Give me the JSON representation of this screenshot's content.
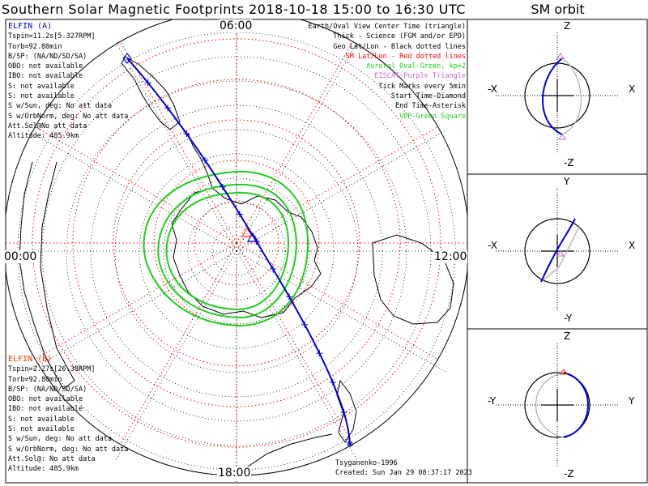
{
  "title": "Southern Solar Magnetic Footprints 2018-10-18 15:00 to 16:30 UTC",
  "orbit_title": "SM orbit",
  "clock_labels": {
    "top": "06:00",
    "bottom": "18:00",
    "left": "00:00",
    "right": "12:00"
  },
  "elfin_a": {
    "name": "ELFIN (A)",
    "color": "#0000cc",
    "lines": [
      "Tspin=11.2s[5.327RPM]",
      "Torb=92.80min",
      "B/SP: (NA/ND/SD/SA)",
      "OBO: not available",
      "IBO: not available",
      "S: not available",
      "S: not available",
      "S w/Sun, deg: No att data",
      "S w/OrbNorm, deg: No att data",
      "Att.Sol@No att data",
      "Altitude: 485.9km"
    ]
  },
  "elfin_b": {
    "name": "ELFIN (B)",
    "color": "#ff3300",
    "lines": [
      "Tspin=2.27s[26.38RPM]",
      "Torb=92.80min",
      "B/SP: (NA/ND/SD/SA)",
      "OBO: not available",
      "IBO: not available",
      "S: not available",
      "S: not available",
      "S w/Sun, deg: No att data",
      "S w/OrbNorm, deg: No att data",
      "Att.Sol@: No att data",
      "Altitude: 485.9km"
    ]
  },
  "legend": [
    {
      "text": "Earth/Oval View Center Time (triangle)",
      "color": "#000000"
    },
    {
      "text": "Thick - Science (FGM and/or EPD)",
      "color": "#000000"
    },
    {
      "text": "Geo Lat/Lon - Black dotted lines",
      "color": "#000000"
    },
    {
      "text": "SM Lat/Lon - Red dotted lines",
      "color": "#ff0000"
    },
    {
      "text": "Auroral Oval-Green, kp=2",
      "color": "#22cc22"
    },
    {
      "text": "EISCAT-Purple Triangle",
      "color": "#cc66cc"
    },
    {
      "text": "Tick Marks every 5min",
      "color": "#000000"
    },
    {
      "text": "Start Time-Diamond",
      "color": "#000000"
    },
    {
      "text": "End Time-Asterisk",
      "color": "#000000"
    },
    {
      "text": "VDP-Green Square",
      "color": "#22cc22"
    }
  ],
  "footer": {
    "model": "Tsyganenko-1996",
    "created": "Created: Sun Jan 29 08:37:17 2023"
  },
  "panels": [
    {
      "top": "Z",
      "bottom": "-Z",
      "left": "-X",
      "right": "X"
    },
    {
      "top": "Y",
      "bottom": "-Y",
      "left": "-X",
      "right": "X"
    },
    {
      "top": "Z",
      "bottom": "-Z",
      "left": "-Y",
      "right": "Y"
    }
  ],
  "colors": {
    "orbit": "#0000cc",
    "sm_grid": "#ff0000",
    "geo_grid": "#000000",
    "oval": "#22cc22",
    "eiscat": "#cc66cc",
    "shadow_orbit": "#aaaaaa"
  }
}
